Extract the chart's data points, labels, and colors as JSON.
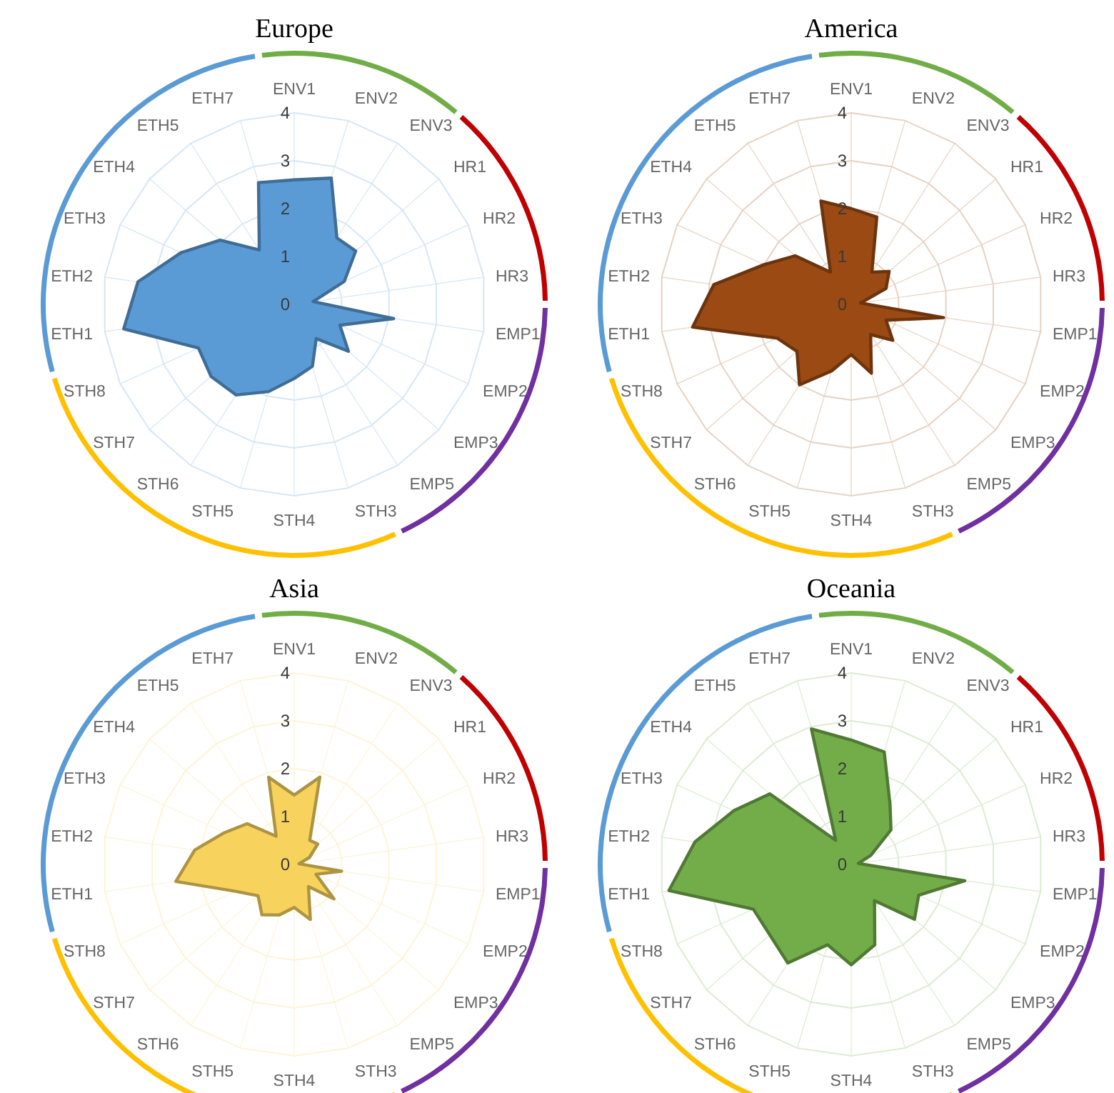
{
  "chart_data": [
    {
      "type": "radar",
      "title": "Europe",
      "categories": [
        "ENV1",
        "ENV2",
        "ENV3",
        "HR1",
        "HR2",
        "HR3",
        "EMP1",
        "EMP2",
        "EMP3",
        "EMP5",
        "STH3",
        "STH4",
        "STH5",
        "STH6",
        "STH7",
        "STH8",
        "ETH1",
        "ETH2",
        "ETH3",
        "ETH4",
        "ETH5",
        "ETH7"
      ],
      "ylim": [
        0,
        4
      ],
      "yticks": [
        0,
        1,
        2,
        3,
        4
      ],
      "grid": true,
      "legend": false,
      "series": [
        {
          "color": "#5b9bd5",
          "values": [
            2.6,
            2.75,
            1.65,
            1.7,
            1.15,
            0.4,
            2.1,
            1.05,
            1.5,
            0.85,
            1.35,
            1.55,
            1.9,
            2.25,
            2.3,
            2.2,
            3.6,
            3.3,
            2.6,
            2.05,
            1.35,
            2.65
          ]
        }
      ]
    },
    {
      "type": "radar",
      "title": "America",
      "categories": [
        "ENV1",
        "ENV2",
        "ENV3",
        "HR1",
        "HR2",
        "HR3",
        "EMP1",
        "EMP2",
        "EMP3",
        "EMP5",
        "STH3",
        "STH4",
        "STH5",
        "STH6",
        "STH7",
        "STH8",
        "ETH1",
        "ETH2",
        "ETH3",
        "ETH4",
        "ETH5",
        "ETH7"
      ],
      "ylim": [
        0,
        4
      ],
      "yticks": [
        0,
        1,
        2,
        3,
        4
      ],
      "grid": true,
      "legend": false,
      "series": [
        {
          "color": "#9a4a12",
          "values": [
            2.0,
            1.9,
            0.8,
            1.05,
            0.8,
            0.2,
            1.95,
            0.8,
            1.15,
            0.75,
            1.5,
            1.05,
            1.45,
            2.0,
            1.5,
            1.7,
            3.35,
            2.9,
            2.0,
            1.55,
            0.8,
            2.25
          ]
        }
      ]
    },
    {
      "type": "radar",
      "title": "Asia",
      "categories": [
        "ENV1",
        "ENV2",
        "ENV3",
        "HR1",
        "HR2",
        "HR3",
        "EMP1",
        "EMP2",
        "EMP3",
        "EMP5",
        "STH3",
        "STH4",
        "STH5",
        "STH6",
        "STH7",
        "STH8",
        "ETH1",
        "ETH2",
        "ETH3",
        "ETH4",
        "ETH5",
        "ETH7"
      ],
      "ylim": [
        0,
        4
      ],
      "yticks": [
        0,
        1,
        2,
        3,
        4
      ],
      "grid": true,
      "legend": false,
      "series": [
        {
          "color": "#f7d35e",
          "values": [
            1.45,
            1.9,
            0.6,
            0.65,
            0.35,
            0.1,
            1.0,
            0.5,
            1.1,
            0.55,
            1.2,
            0.9,
            1.1,
            1.25,
            1.0,
            1.35,
            2.5,
            2.1,
            1.6,
            1.3,
            0.7,
            1.9
          ]
        }
      ]
    },
    {
      "type": "radar",
      "title": "Oceania",
      "categories": [
        "ENV1",
        "ENV2",
        "ENV3",
        "HR1",
        "HR2",
        "HR3",
        "EMP1",
        "EMP2",
        "EMP3",
        "EMP5",
        "STH3",
        "STH4",
        "STH5",
        "STH6",
        "STH7",
        "STH8",
        "ETH1",
        "ETH2",
        "ETH3",
        "ETH4",
        "ETH5",
        "ETH7"
      ],
      "ylim": [
        0,
        4
      ],
      "yticks": [
        0,
        1,
        2,
        3,
        4
      ],
      "grid": true,
      "legend": false,
      "series": [
        {
          "color": "#72ad4a",
          "values": [
            2.6,
            2.45,
            1.5,
            1.1,
            0.45,
            0.15,
            2.4,
            1.55,
            1.75,
            0.9,
            1.75,
            2.1,
            1.75,
            2.45,
            2.25,
            2.25,
            3.85,
            3.3,
            2.7,
            2.25,
            0.6,
            2.95
          ]
        }
      ]
    }
  ]
}
